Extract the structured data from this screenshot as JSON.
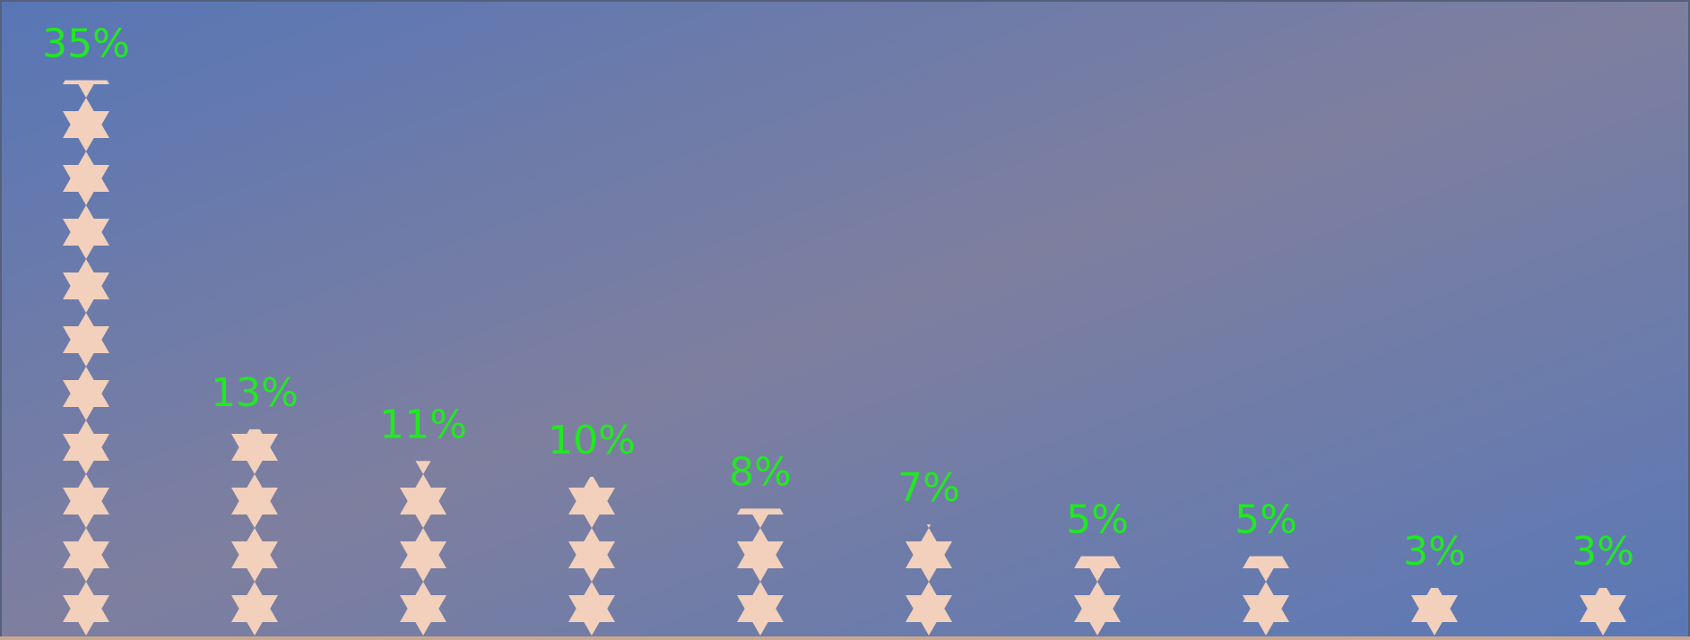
{
  "chart_data": {
    "type": "pictograph",
    "values": [
      35,
      13,
      11,
      10,
      8,
      7,
      5,
      5,
      3,
      3
    ],
    "value_labels": [
      "35%",
      "13%",
      "11%",
      "10%",
      "8%",
      "7%",
      "5%",
      "5%",
      "3%",
      "3%"
    ],
    "color": "#f2d0bb",
    "label_color": "#22e822"
  }
}
